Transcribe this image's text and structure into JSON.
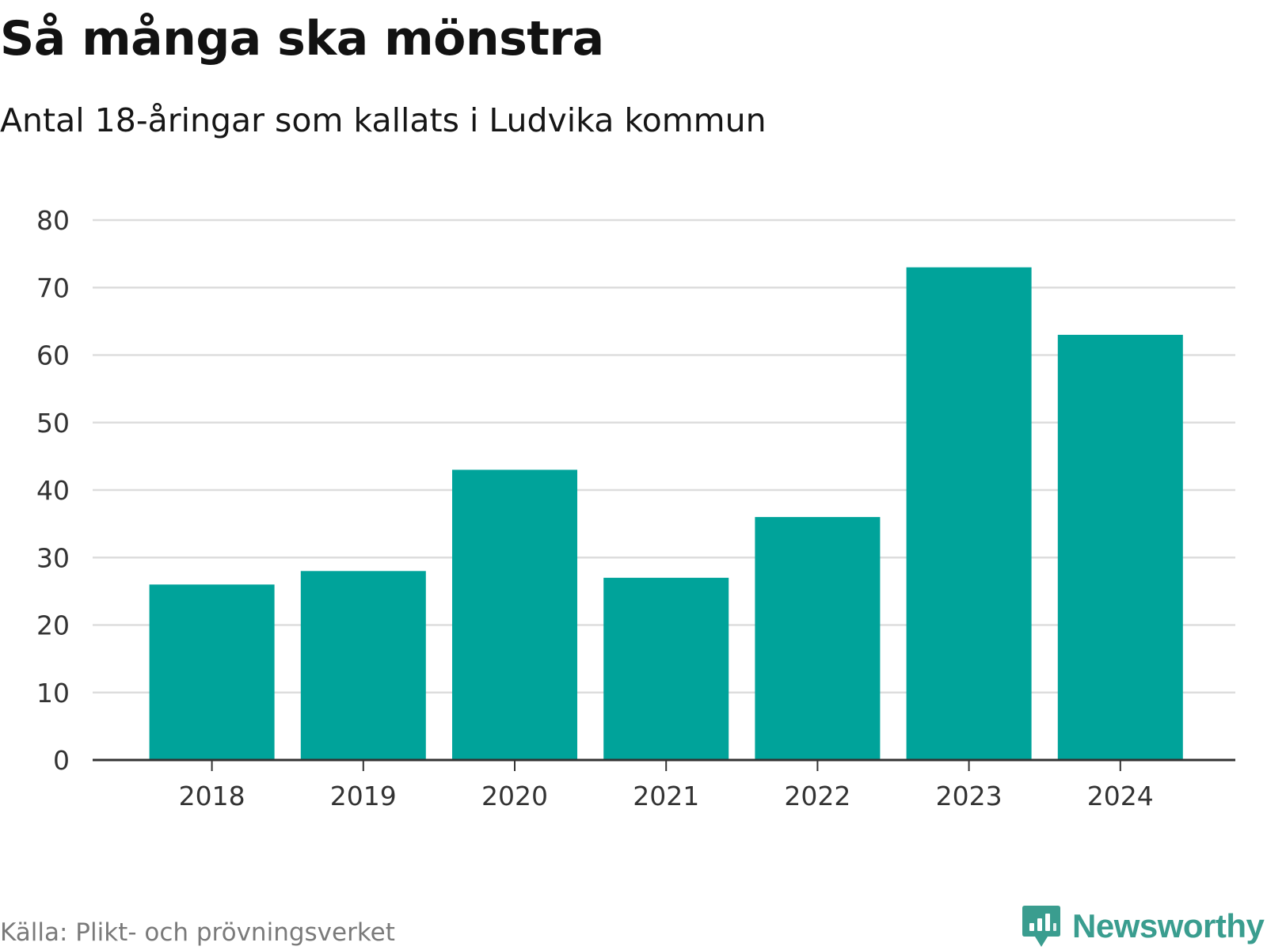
{
  "header": {
    "title": "Så många ska mönstra",
    "subtitle": "Antal 18-åringar som kallats i Ludvika kommun"
  },
  "chart_data": {
    "type": "bar",
    "title": "Så många ska mönstra",
    "subtitle": "Antal 18-åringar som kallats i Ludvika kommun",
    "categories": [
      "2018",
      "2019",
      "2020",
      "2021",
      "2022",
      "2023",
      "2024"
    ],
    "values": [
      26,
      28,
      43,
      27,
      36,
      73,
      63
    ],
    "xlabel": "",
    "ylabel": "",
    "ylim": [
      0,
      80
    ],
    "yticks": [
      "0",
      "10",
      "20",
      "30",
      "40",
      "50",
      "60",
      "70",
      "80"
    ],
    "grid": true,
    "bar_color": "#00a39a",
    "grid_color": "#dddddd",
    "axis_color": "#333333"
  },
  "footer": {
    "source": "Källa: Plikt- och prövningsverket",
    "brand": "Newsworthy",
    "brand_icon": "newsworthy-logo-icon",
    "brand_color": "#3a9d8f"
  }
}
